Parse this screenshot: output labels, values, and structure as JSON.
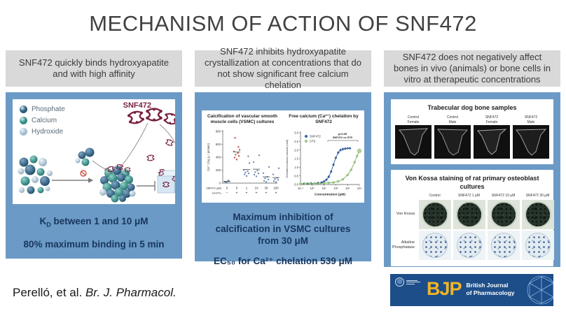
{
  "title": "MECHANISM OF ACTION OF SNF472",
  "citation": {
    "authors": "Perelló, et al. ",
    "journal": "Br. J. Pharmacol."
  },
  "bjp": {
    "abbr": "BJP",
    "journal_line1": "British Journal",
    "journal_line2": "of Pharmacology"
  },
  "colors": {
    "panel_blue": "#6b9ac6",
    "header_gray": "#d9d9d9",
    "caption_navy": "#17365d",
    "molecule_red": "#7a1f3f",
    "banner_navy": "#1d4e89",
    "bjp_gold": "#f0b429"
  },
  "panel_binding": {
    "header": "SNF472 quickly binds hydroxyapatite and with high affinity",
    "legend": [
      {
        "label": "Phosphate",
        "color": "#2b5d7d"
      },
      {
        "label": "Calcium",
        "color": "#2f8e86"
      },
      {
        "label": "Hydroxide",
        "color": "#a3bdd1"
      }
    ],
    "molecule_label": "SNF472",
    "caption_kd": {
      "base": "K",
      "sub": "D",
      "rest": " between 1 and 10 μM"
    },
    "caption_binding": "80% maximum binding in 5 min"
  },
  "panel_inhibition": {
    "header": "SNF472 inhibits hydroxyapatite crystallization at concentrations that do not show significant free calcium chelation",
    "caption_max": "Maximum inhibition of calcification in VSMC cultures from 30 μM",
    "caption_ec50": "EC₅₀ for Ca²⁺ chelation 539 μM"
  },
  "panel_bone": {
    "header": "SNF472 does not negatively affect bones in vivo (animals) or bone cells in vitro at therapeutic concentrations",
    "bone_card": {
      "title": "Trabecular dog bone samples",
      "samples": [
        {
          "line1": "Control",
          "line2": "Female"
        },
        {
          "line1": "Control",
          "line2": "Male"
        },
        {
          "line1": "SNF472",
          "line2": "Female"
        },
        {
          "line1": "SNF472",
          "line2": "Male"
        }
      ]
    },
    "vonkossa_card": {
      "title": "Von Kossa staining of rat primary osteoblast cultures",
      "columns": [
        "Control",
        "SNF472 1 μM",
        "SNF472 10 μM",
        "SNF472 30 μM"
      ],
      "rows": [
        "Von Kossa",
        "Alkaline Phosphatase"
      ]
    }
  },
  "chart_data": [
    {
      "type": "scatter",
      "title": "Calcification of vascular smooth muscle cells (VSMC) cultures",
      "ylabel": "Ca²⁺ (mg g⁻¹ protein)",
      "ylim": [
        0,
        800
      ],
      "yticks": [
        0,
        200,
        400,
        600,
        800
      ],
      "x_row_labels": [
        "SNF472 (μM)",
        "Ca×PO₄"
      ],
      "groups": [
        {
          "snf472": "0",
          "caxpo4": "−",
          "color": "#5b79a8",
          "points": [
            12,
            22,
            30,
            18,
            40
          ]
        },
        {
          "snf472": "0",
          "caxpo4": "+",
          "color": "#b03a2e",
          "points": [
            365,
            395,
            420,
            440,
            465,
            490,
            515,
            560,
            700
          ]
        },
        {
          "snf472": "1",
          "caxpo4": "+",
          "color": "#5b79a8",
          "points": [
            110,
            135,
            150,
            165,
            185,
            205,
            310,
            415
          ]
        },
        {
          "snf472": "10",
          "caxpo4": "+",
          "color": "#5b79a8",
          "points": [
            105,
            130,
            150,
            170,
            195,
            325,
            430
          ]
        },
        {
          "snf472": "30",
          "caxpo4": "+",
          "color": "#5b79a8",
          "points": [
            18,
            35,
            55,
            75,
            95,
            155,
            250
          ]
        },
        {
          "snf472": "100",
          "caxpo4": "+",
          "color": "#5b79a8",
          "points": [
            15,
            30,
            48,
            62,
            80,
            135,
            230
          ]
        }
      ]
    },
    {
      "type": "line",
      "title": "Free calcium (Ca²⁺) chelation by SNF472",
      "xlabel": "Concentration (μM)",
      "ylabel": "Chelated ionized calcium (mM)",
      "x_scale": "log",
      "xlim_log": [
        -1,
        4
      ],
      "xticks": [
        "10⁻¹",
        "10⁰",
        "10¹",
        "10²",
        "10³",
        "10⁴"
      ],
      "ylim": [
        0,
        3
      ],
      "yticks": [
        "0.0",
        "0.5",
        "1.0",
        "1.5",
        "2.0",
        "2.5",
        "3.0"
      ],
      "annotation": {
        "line1": "p<0.05",
        "line2": "SNF472 vs STS"
      },
      "legend_position": "top-left",
      "series": [
        {
          "name": "SNF472",
          "color": "#2f5f9e",
          "marker": "diamond",
          "x_log": [
            -1,
            -0.7,
            -0.4,
            -0.1,
            0.2,
            0.5,
            0.8,
            1.0,
            1.2,
            1.4,
            1.6,
            1.8,
            2.0,
            2.2,
            2.4,
            2.6,
            2.8,
            3.0,
            3.2
          ],
          "y": [
            0.05,
            0.05,
            0.05,
            0.06,
            0.07,
            0.09,
            0.12,
            0.18,
            0.28,
            0.45,
            0.75,
            1.15,
            1.55,
            1.85,
            2.0,
            2.05,
            2.08,
            2.1,
            2.1
          ]
        },
        {
          "name": "STS",
          "color": "#a5cf8d",
          "stroke": "#7fae62",
          "marker": "circle",
          "x_log": [
            -1,
            -0.6,
            -0.2,
            0.2,
            0.6,
            1.0,
            1.4,
            1.8,
            2.2,
            2.6,
            3.0,
            3.3,
            3.6,
            3.8,
            4.0
          ],
          "y": [
            0.04,
            0.04,
            0.05,
            0.05,
            0.06,
            0.08,
            0.1,
            0.12,
            0.18,
            0.3,
            0.55,
            0.85,
            1.3,
            1.65,
            1.95
          ]
        }
      ]
    }
  ]
}
